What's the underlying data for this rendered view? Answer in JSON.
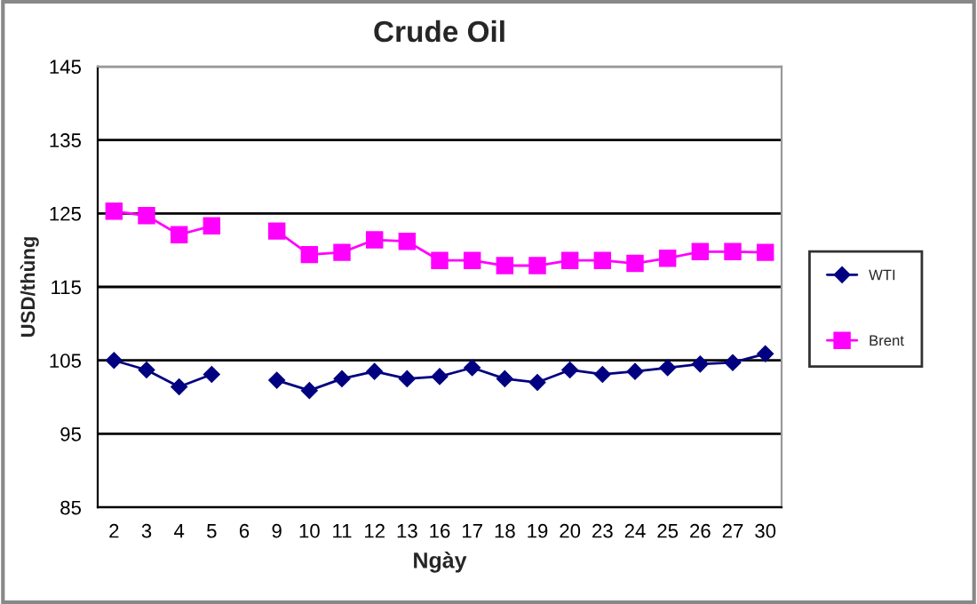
{
  "chart_data": {
    "type": "line",
    "title": "Crude Oil",
    "xlabel": "Ngày",
    "ylabel": "USD/thùng",
    "categories": [
      "2",
      "3",
      "4",
      "5",
      "6",
      "9",
      "10",
      "11",
      "12",
      "13",
      "16",
      "17",
      "18",
      "19",
      "20",
      "23",
      "24",
      "25",
      "26",
      "27",
      "30"
    ],
    "series": [
      {
        "name": "WTI",
        "color": "#000080",
        "marker": "diamond",
        "values": [
          105.0,
          103.7,
          101.4,
          103.1,
          null,
          102.3,
          100.9,
          102.5,
          103.5,
          102.5,
          102.8,
          104.0,
          102.5,
          102.0,
          103.7,
          103.1,
          103.5,
          104.0,
          104.5,
          104.7,
          105.9
        ]
      },
      {
        "name": "Brent",
        "color": "#ff00ff",
        "marker": "square",
        "values": [
          125.3,
          124.7,
          122.1,
          123.3,
          null,
          122.6,
          119.4,
          119.7,
          121.4,
          121.2,
          118.6,
          118.6,
          117.9,
          117.9,
          118.6,
          118.6,
          118.2,
          118.9,
          119.8,
          119.8,
          119.7
        ]
      }
    ],
    "ylim": [
      85,
      145
    ],
    "yticks": [
      85,
      95,
      105,
      115,
      125,
      135,
      145
    ],
    "grid": "y",
    "legend": "right",
    "line_style": "solid"
  }
}
